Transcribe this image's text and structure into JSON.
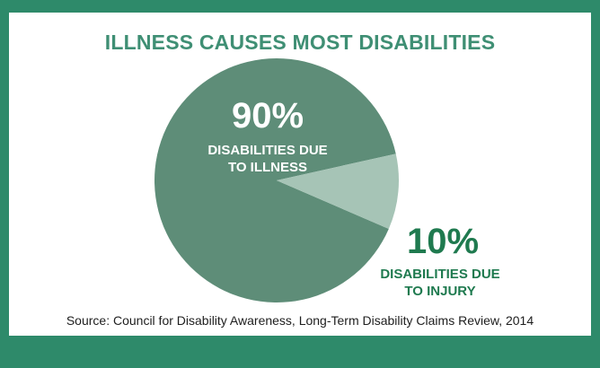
{
  "chart_data": {
    "type": "pie",
    "title": "ILLNESS CAUSES MOST DISABILITIES",
    "slices": [
      {
        "label_value": "90%",
        "label_line1": "DISABILITIES DUE",
        "label_line2": "TO ILLNESS",
        "value": 90,
        "color": "#5e8d78"
      },
      {
        "label_value": "10%",
        "label_line1": "DISABILITIES DUE",
        "label_line2": "TO INJURY",
        "value": 10,
        "color": "#a6c4b6"
      }
    ]
  },
  "source": "Source: Council for Disability Awareness, Long-Term Disability Claims Review, 2014",
  "colors": {
    "frame": "#2e8a6a",
    "title": "#3f8f74",
    "inside_label": "#ffffff",
    "outside_label_value": "#1f7a4f",
    "outside_label_text": "#1f7a4f"
  }
}
